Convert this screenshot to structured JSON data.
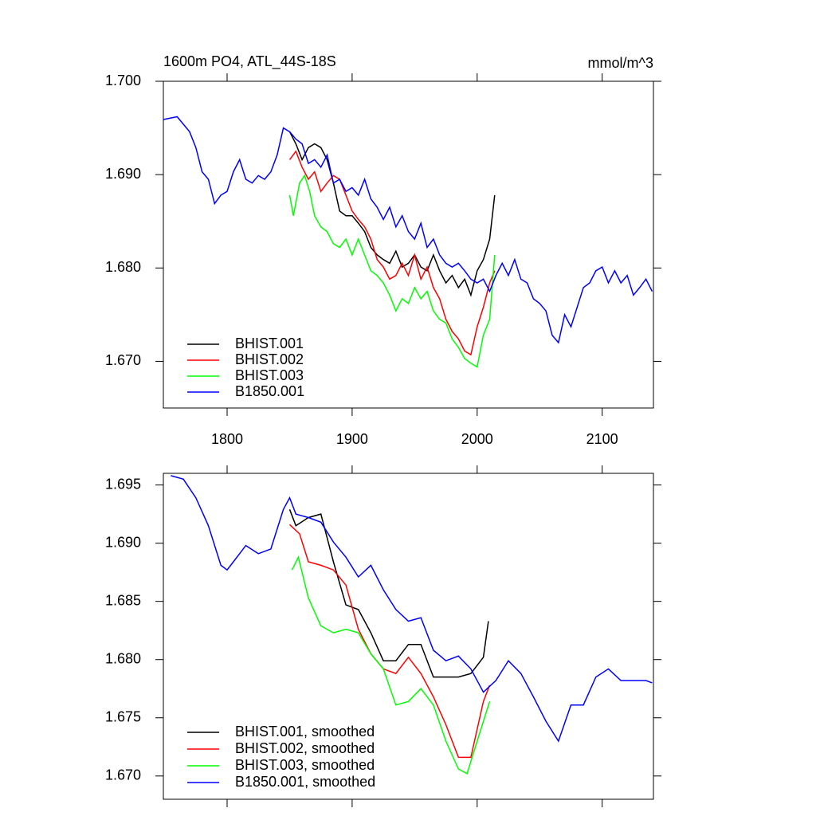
{
  "chart_data": [
    {
      "type": "line",
      "title": "1600m PO4, ATL_44S-18S",
      "units": "mmol/m^3",
      "xlim": [
        1749,
        2141
      ],
      "xticks": [
        1800,
        1900,
        2000,
        2100
      ],
      "ylim": [
        1.665,
        1.7
      ],
      "yticks": [
        {
          "value": 1.7,
          "label": "1.700"
        },
        {
          "value": 1.69,
          "label": "1.690"
        },
        {
          "value": 1.68,
          "label": "1.680"
        },
        {
          "value": 1.67,
          "label": "1.670"
        }
      ],
      "legend": "lower left",
      "series": [
        {
          "name": "BHIST.001",
          "color": "#000000",
          "x": [
            1850,
            1855,
            1860,
            1865,
            1870,
            1875,
            1880,
            1885,
            1890,
            1895,
            1900,
            1905,
            1910,
            1915,
            1920,
            1925,
            1930,
            1935,
            1940,
            1945,
            1950,
            1955,
            1960,
            1965,
            1970,
            1975,
            1980,
            1985,
            1990,
            1995,
            2000,
            2005,
            2010,
            2014
          ],
          "values": [
            1.6946,
            1.6933,
            1.6916,
            1.6929,
            1.6933,
            1.6929,
            1.6916,
            1.6891,
            1.6861,
            1.6856,
            1.6856,
            1.6848,
            1.6839,
            1.6822,
            1.6814,
            1.6809,
            1.6805,
            1.6818,
            1.6801,
            1.6805,
            1.6814,
            1.6801,
            1.6797,
            1.6814,
            1.6797,
            1.6784,
            1.6792,
            1.6779,
            1.6788,
            1.6771,
            1.6797,
            1.6809,
            1.6831,
            1.6878
          ]
        },
        {
          "name": "BHIST.002",
          "color": "#ff0000",
          "x": [
            1850,
            1855,
            1860,
            1865,
            1870,
            1875,
            1880,
            1885,
            1890,
            1895,
            1900,
            1905,
            1910,
            1915,
            1920,
            1925,
            1930,
            1935,
            1940,
            1945,
            1950,
            1955,
            1960,
            1965,
            1970,
            1975,
            1980,
            1985,
            1990,
            1995,
            2000,
            2005,
            2010,
            2014
          ],
          "values": [
            1.6916,
            1.6925,
            1.6908,
            1.6895,
            1.6903,
            1.6882,
            1.6891,
            1.6899,
            1.6895,
            1.6878,
            1.6861,
            1.6852,
            1.6844,
            1.6831,
            1.6809,
            1.6801,
            1.6788,
            1.6792,
            1.6805,
            1.6792,
            1.6814,
            1.6788,
            1.6801,
            1.6779,
            1.6767,
            1.6745,
            1.6732,
            1.6724,
            1.6711,
            1.6707,
            1.6737,
            1.6758,
            1.6784,
            1.6797
          ]
        },
        {
          "name": "BHIST.003",
          "color": "#00ff00",
          "x": [
            1850,
            1853,
            1858,
            1862,
            1866,
            1870,
            1875,
            1880,
            1885,
            1890,
            1895,
            1900,
            1905,
            1910,
            1915,
            1920,
            1925,
            1930,
            1935,
            1940,
            1945,
            1950,
            1955,
            1960,
            1965,
            1970,
            1975,
            1980,
            1985,
            1990,
            1995,
            2000,
            2005,
            2010,
            2014
          ],
          "values": [
            1.6878,
            1.6856,
            1.6891,
            1.6899,
            1.6882,
            1.6856,
            1.6844,
            1.6839,
            1.6826,
            1.6822,
            1.6831,
            1.6814,
            1.6831,
            1.6814,
            1.6797,
            1.6792,
            1.6784,
            1.6771,
            1.6754,
            1.6767,
            1.6762,
            1.6779,
            1.6767,
            1.6775,
            1.6754,
            1.6745,
            1.6741,
            1.6724,
            1.6715,
            1.6703,
            1.6698,
            1.6694,
            1.6728,
            1.6745,
            1.6814
          ]
        },
        {
          "name": "B1850.001",
          "color": "#0000ff",
          "x": [
            1749,
            1760,
            1770,
            1775,
            1780,
            1785,
            1790,
            1795,
            1800,
            1805,
            1810,
            1815,
            1820,
            1825,
            1830,
            1835,
            1840,
            1845,
            1850,
            1855,
            1860,
            1865,
            1870,
            1875,
            1880,
            1885,
            1890,
            1895,
            1900,
            1905,
            1910,
            1915,
            1920,
            1925,
            1930,
            1935,
            1940,
            1945,
            1950,
            1955,
            1960,
            1965,
            1970,
            1975,
            1980,
            1985,
            1990,
            1995,
            2000,
            2005,
            2010,
            2015,
            2020,
            2025,
            2030,
            2035,
            2040,
            2045,
            2050,
            2055,
            2060,
            2065,
            2070,
            2075,
            2080,
            2085,
            2090,
            2095,
            2100,
            2105,
            2110,
            2115,
            2120,
            2125,
            2130,
            2135,
            2140
          ],
          "values": [
            1.6959,
            1.6962,
            1.6946,
            1.6929,
            1.6903,
            1.6895,
            1.6869,
            1.6878,
            1.6882,
            1.6903,
            1.6916,
            1.6895,
            1.6891,
            1.6899,
            1.6895,
            1.6903,
            1.6921,
            1.695,
            1.6946,
            1.6938,
            1.6933,
            1.6912,
            1.6916,
            1.6908,
            1.6921,
            1.6891,
            1.6895,
            1.6882,
            1.6886,
            1.6878,
            1.6895,
            1.6874,
            1.6865,
            1.6852,
            1.6865,
            1.6844,
            1.6856,
            1.6839,
            1.6831,
            1.6848,
            1.6822,
            1.6831,
            1.6814,
            1.6805,
            1.6801,
            1.6805,
            1.6797,
            1.6788,
            1.6784,
            1.6788,
            1.6775,
            1.6792,
            1.6805,
            1.6792,
            1.6809,
            1.6788,
            1.6784,
            1.6767,
            1.6762,
            1.6754,
            1.6728,
            1.672,
            1.675,
            1.6737,
            1.6758,
            1.6779,
            1.6784,
            1.6797,
            1.6801,
            1.6784,
            1.6797,
            1.6784,
            1.6792,
            1.6771,
            1.6779,
            1.6788,
            1.6775
          ]
        }
      ]
    },
    {
      "type": "line",
      "xlim": [
        1749,
        2141
      ],
      "xticks": [
        1800,
        1900,
        2000,
        2100
      ],
      "ylim": [
        1.668,
        1.696
      ],
      "yticks": [
        {
          "value": 1.695,
          "label": "1.695"
        },
        {
          "value": 1.69,
          "label": "1.690"
        },
        {
          "value": 1.685,
          "label": "1.685"
        },
        {
          "value": 1.68,
          "label": "1.680"
        },
        {
          "value": 1.675,
          "label": "1.675"
        },
        {
          "value": 1.67,
          "label": "1.670"
        }
      ],
      "legend": "lower left",
      "series": [
        {
          "name": "BHIST.001, smoothed",
          "color": "#000000",
          "x": [
            1850,
            1855,
            1865,
            1875,
            1885,
            1895,
            1905,
            1915,
            1925,
            1935,
            1945,
            1955,
            1965,
            1975,
            1985,
            1995,
            2005,
            2009
          ],
          "values": [
            1.6929,
            1.6915,
            1.6922,
            1.6925,
            1.6884,
            1.6847,
            1.6843,
            1.6823,
            1.6799,
            1.6799,
            1.6813,
            1.6813,
            1.6785,
            1.6785,
            1.6785,
            1.6788,
            1.6802,
            1.6833
          ]
        },
        {
          "name": "BHIST.002, smoothed",
          "color": "#ff0000",
          "x": [
            1850,
            1858,
            1865,
            1875,
            1885,
            1895,
            1905,
            1915,
            1925,
            1935,
            1945,
            1955,
            1965,
            1975,
            1985,
            1995,
            2005,
            2010
          ],
          "values": [
            1.6916,
            1.6908,
            1.6884,
            1.6881,
            1.6877,
            1.6864,
            1.6826,
            1.6805,
            1.6792,
            1.6788,
            1.6802,
            1.6788,
            1.6768,
            1.6744,
            1.6716,
            1.6716,
            1.6764,
            1.6778
          ]
        },
        {
          "name": "BHIST.003, smoothed",
          "color": "#00ff00",
          "x": [
            1852,
            1857,
            1865,
            1875,
            1885,
            1895,
            1905,
            1915,
            1925,
            1935,
            1945,
            1955,
            1965,
            1975,
            1985,
            1992,
            2000,
            2010
          ],
          "values": [
            1.6877,
            1.6888,
            1.6853,
            1.6829,
            1.6823,
            1.6826,
            1.6823,
            1.6805,
            1.6792,
            1.6761,
            1.6764,
            1.6775,
            1.6761,
            1.673,
            1.6706,
            1.6702,
            1.673,
            1.6764
          ]
        },
        {
          "name": "B1850.001, smoothed",
          "color": "#0000ff",
          "x": [
            1755,
            1765,
            1775,
            1785,
            1795,
            1800,
            1805,
            1815,
            1825,
            1835,
            1845,
            1850,
            1855,
            1865,
            1875,
            1885,
            1895,
            1905,
            1915,
            1925,
            1935,
            1945,
            1955,
            1965,
            1975,
            1985,
            1995,
            2005,
            2015,
            2025,
            2035,
            2045,
            2055,
            2065,
            2075,
            2085,
            2095,
            2105,
            2115,
            2125,
            2135,
            2140
          ],
          "values": [
            1.6958,
            1.6955,
            1.6939,
            1.6915,
            1.6881,
            1.6877,
            1.6884,
            1.6898,
            1.6891,
            1.6895,
            1.6929,
            1.6939,
            1.6925,
            1.6922,
            1.6918,
            1.6901,
            1.6888,
            1.6871,
            1.6881,
            1.686,
            1.6843,
            1.6833,
            1.6836,
            1.6808,
            1.6799,
            1.6803,
            1.6792,
            1.6772,
            1.6782,
            1.6799,
            1.6788,
            1.6768,
            1.6747,
            1.673,
            1.6761,
            1.6761,
            1.6785,
            1.6792,
            1.6782,
            1.6782,
            1.6782,
            1.678
          ]
        }
      ]
    }
  ]
}
